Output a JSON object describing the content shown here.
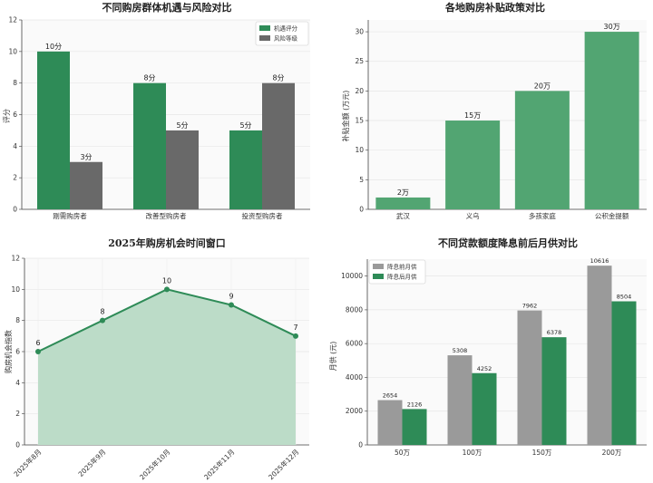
{
  "colors": {
    "green": "#2e8b57",
    "green_bar": "#52a572",
    "gray": "#696969",
    "gray_light": "#9a9a9a",
    "area": "#bcdcc8",
    "line": "#2e8b57"
  },
  "chart_data": [
    {
      "type": "bar",
      "title": "不同购房群体机遇与风险对比",
      "ylabel": "评分",
      "xlabel": "",
      "categories": [
        "刚需购房者",
        "改善型购房者",
        "投资型购房者"
      ],
      "series": [
        {
          "name": "机遇评分",
          "values": [
            10,
            8,
            5
          ],
          "labels": [
            "10分",
            "8分",
            "5分"
          ]
        },
        {
          "name": "风险等级",
          "values": [
            3,
            5,
            8
          ],
          "labels": [
            "3分",
            "5分",
            "8分"
          ]
        }
      ],
      "ylim": [
        0,
        12
      ],
      "yticks": [
        "0",
        "2",
        "4",
        "6",
        "8",
        "10",
        "12"
      ],
      "legend": "top-right"
    },
    {
      "type": "bar",
      "title": "各地购房补贴政策对比",
      "ylabel": "补贴金额 (万元)",
      "xlabel": "",
      "categories": [
        "武汉",
        "义乌",
        "多孩家庭",
        "公积金提额"
      ],
      "values": [
        2,
        15,
        20,
        30
      ],
      "labels": [
        "2万",
        "15万",
        "20万",
        "30万"
      ],
      "ylim": [
        0,
        32
      ],
      "yticks": [
        "0",
        "5",
        "10",
        "15",
        "20",
        "25",
        "30"
      ]
    },
    {
      "type": "area",
      "title": "2025年购房机会时间窗口",
      "ylabel": "购房机会指数",
      "xlabel": "",
      "categories": [
        "2025年8月",
        "2025年9月",
        "2025年10月",
        "2025年11月",
        "2025年12月"
      ],
      "values": [
        6,
        8,
        10,
        9,
        7
      ],
      "labels": [
        "6",
        "8",
        "10",
        "9",
        "7"
      ],
      "ylim": [
        0,
        12
      ],
      "yticks": [
        "0",
        "2",
        "4",
        "6",
        "8",
        "10",
        "12"
      ]
    },
    {
      "type": "bar",
      "title": "不同贷款额度降息前后月供对比",
      "ylabel": "月供 (元)",
      "xlabel": "",
      "categories": [
        "50万",
        "100万",
        "150万",
        "200万"
      ],
      "series": [
        {
          "name": "降息前月供",
          "values": [
            2654,
            5308,
            7962,
            10616
          ],
          "labels": [
            "2654",
            "5308",
            "7962",
            "10616"
          ]
        },
        {
          "name": "降息后月供",
          "values": [
            2126,
            4252,
            6378,
            8504
          ],
          "labels": [
            "2126",
            "4252",
            "6378",
            "8504"
          ]
        }
      ],
      "ylim": [
        0,
        11000
      ],
      "yticks": [
        "0",
        "2000",
        "4000",
        "6000",
        "8000",
        "10000"
      ],
      "legend": "top-left"
    }
  ]
}
